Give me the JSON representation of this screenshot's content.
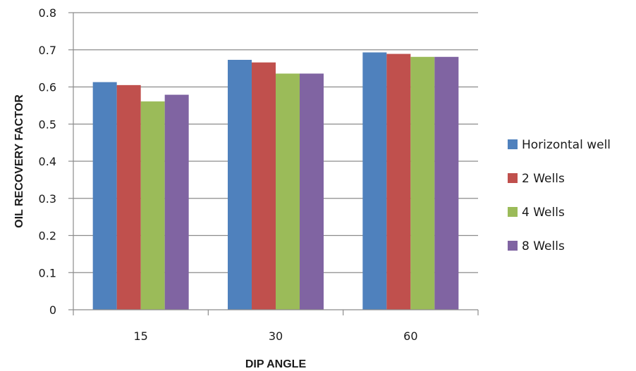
{
  "chart_data": {
    "type": "bar",
    "categories": [
      "15",
      "30",
      "60"
    ],
    "series": [
      {
        "name": "Horizontal well",
        "color": "#4f81bd",
        "values": [
          0.613,
          0.673,
          0.693
        ]
      },
      {
        "name": "2 Wells",
        "color": "#c0504d",
        "values": [
          0.605,
          0.666,
          0.689
        ]
      },
      {
        "name": "4 Wells",
        "color": "#9bbb59",
        "values": [
          0.561,
          0.636,
          0.681
        ]
      },
      {
        "name": "8 Wells",
        "color": "#8064a2",
        "values": [
          0.579,
          0.636,
          0.681
        ]
      }
    ],
    "xlabel": "DIP ANGLE",
    "ylabel": "OIL RECOVERY FACTOR",
    "ylim": [
      0,
      0.8
    ],
    "yticks": [
      "0",
      "0.1",
      "0.2",
      "0.3",
      "0.4",
      "0.5",
      "0.6",
      "0.7",
      "0.8"
    ],
    "grid": true,
    "legend_position": "right"
  }
}
